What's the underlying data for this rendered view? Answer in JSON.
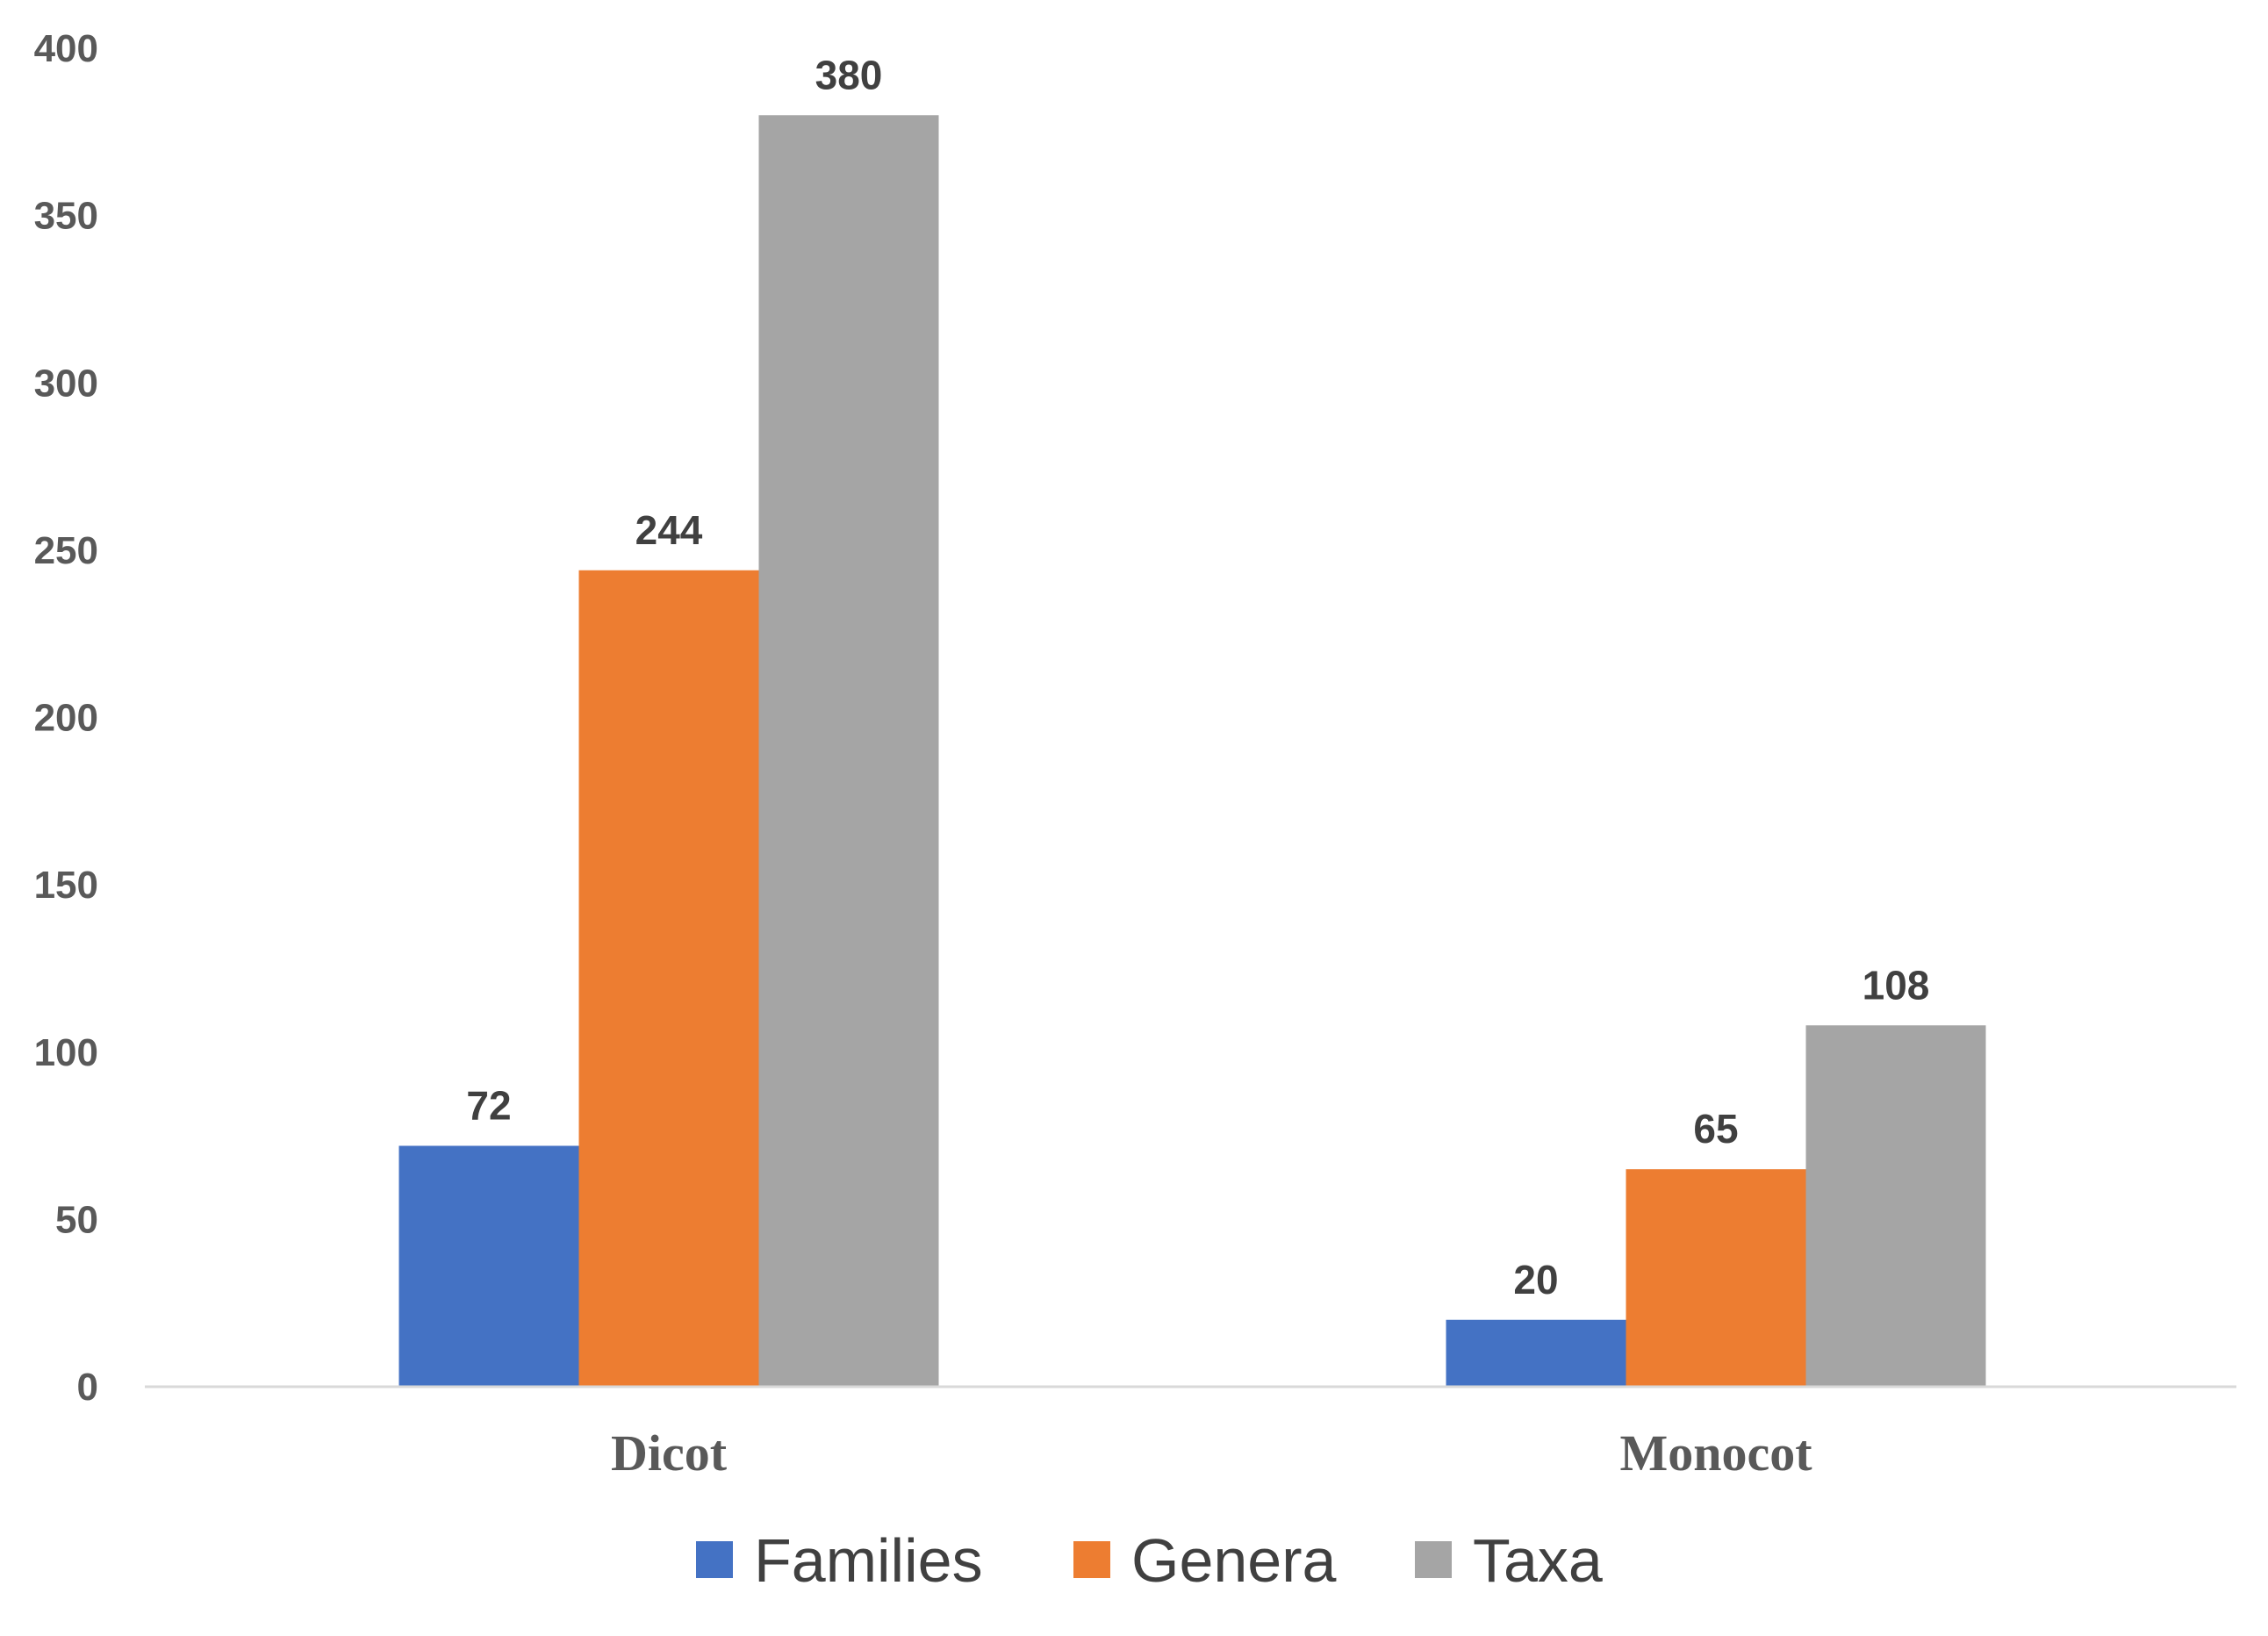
{
  "chart_data": {
    "type": "bar",
    "title": "",
    "xlabel": "",
    "ylabel": "",
    "categories": [
      "Dicot",
      "Monocot"
    ],
    "series": [
      {
        "name": "Families",
        "values": [
          72,
          20
        ],
        "color": "#4472C4"
      },
      {
        "name": "Genera",
        "values": [
          244,
          65
        ],
        "color": "#ED7D31"
      },
      {
        "name": "Taxa",
        "values": [
          380,
          108
        ],
        "color": "#A5A5A5"
      }
    ],
    "ylim": [
      0,
      400
    ],
    "yticks": [
      0,
      50,
      100,
      150,
      200,
      250,
      300,
      350,
      400
    ],
    "grid": false,
    "legend": "bottom-center",
    "data_labels": true
  }
}
